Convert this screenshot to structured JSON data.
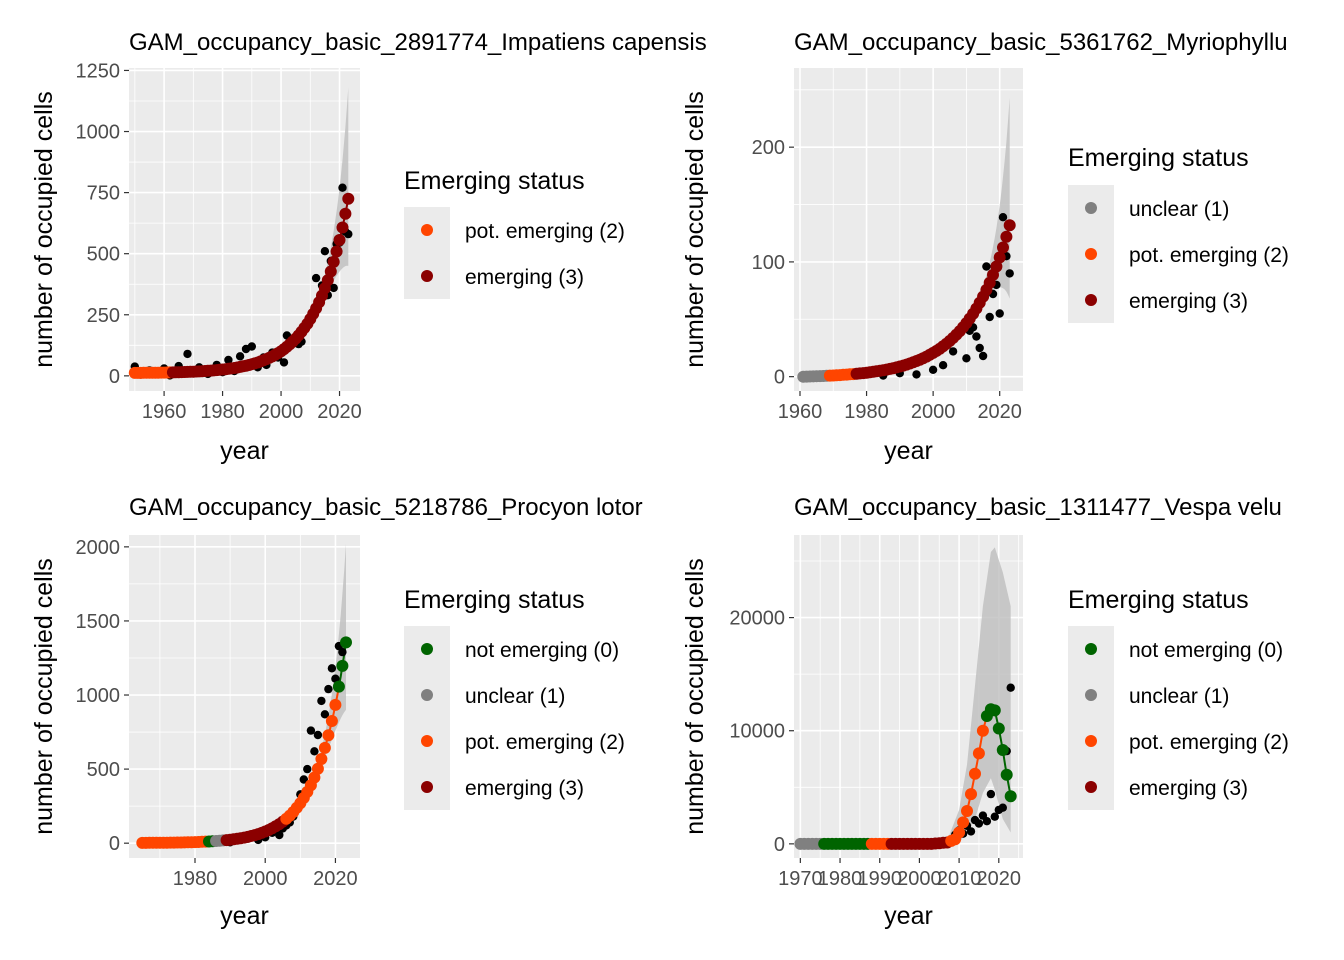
{
  "colors": {
    "panel_bg": "#EBEBEB",
    "grid": "#FFFFFF",
    "ribbon": "#BEBEBE",
    "observed": "#000000",
    "status": {
      "0": "#006400",
      "1": "#808080",
      "2": "#FF4500",
      "3": "#8B0000"
    }
  },
  "status_labels": {
    "0": "not emerging (0)",
    "1": "unclear (1)",
    "2": "pot. emerging (2)",
    "3": "emerging (3)"
  },
  "chart_data": [
    {
      "type": "scatter",
      "title": "GAM_occupancy_basic_2891774_Impatiens capensis",
      "xlabel": "year",
      "ylabel": "number of occupied cells",
      "xlim": [
        1948,
        2027
      ],
      "ylim": [
        -62,
        1260
      ],
      "xticks": [
        1960,
        1980,
        2000,
        2020
      ],
      "yticks": [
        0,
        250,
        500,
        750,
        1000,
        1250
      ],
      "legend": {
        "title": "Emerging status",
        "position": "right",
        "entries": [
          "pot. emerging (2)",
          "emerging (3)"
        ]
      },
      "status_segments": [
        {
          "status": 2,
          "from": 1950,
          "to": 1962
        },
        {
          "status": 3,
          "from": 1963,
          "to": 2023
        }
      ],
      "fit": {
        "model": "exponential",
        "at_start_year": 1950,
        "at_start_value": 12,
        "at_end_year": 2023,
        "at_end_value": 725
      },
      "ribbon": {
        "end_year": 2023,
        "upper_at_end": 1180,
        "lower_at_end": 450,
        "shape": 3
      },
      "observed": [
        [
          1950,
          38
        ],
        [
          1952,
          5
        ],
        [
          1955,
          22
        ],
        [
          1957,
          8
        ],
        [
          1960,
          30
        ],
        [
          1962,
          2
        ],
        [
          1965,
          40
        ],
        [
          1968,
          90
        ],
        [
          1970,
          10
        ],
        [
          1972,
          35
        ],
        [
          1975,
          8
        ],
        [
          1978,
          45
        ],
        [
          1980,
          15
        ],
        [
          1982,
          65
        ],
        [
          1984,
          20
        ],
        [
          1986,
          80
        ],
        [
          1988,
          110
        ],
        [
          1990,
          120
        ],
        [
          1992,
          35
        ],
        [
          1994,
          75
        ],
        [
          1995,
          45
        ],
        [
          1997,
          95
        ],
        [
          1999,
          75
        ],
        [
          2001,
          55
        ],
        [
          2002,
          165
        ],
        [
          2004,
          140
        ],
        [
          2006,
          130
        ],
        [
          2007,
          140
        ],
        [
          2009,
          220
        ],
        [
          2011,
          260
        ],
        [
          2012,
          400
        ],
        [
          2014,
          370
        ],
        [
          2015,
          510
        ],
        [
          2016,
          330
        ],
        [
          2017,
          470
        ],
        [
          2018,
          360
        ],
        [
          2019,
          540
        ],
        [
          2020,
          545
        ],
        [
          2021,
          770
        ],
        [
          2022,
          590
        ],
        [
          2023,
          580
        ]
      ]
    },
    {
      "type": "scatter",
      "title": "GAM_occupancy_basic_5361762_Myriophyllu",
      "xlabel": "year",
      "ylabel": "number of occupied cells",
      "xlim": [
        1958.2,
        2027
      ],
      "ylim": [
        -12.5,
        269
      ],
      "xticks": [
        1960,
        1980,
        2000,
        2020
      ],
      "yticks": [
        0,
        100,
        200
      ],
      "legend": {
        "title": "Emerging status",
        "position": "right",
        "entries": [
          "unclear (1)",
          "pot. emerging (2)",
          "emerging (3)"
        ]
      },
      "status_segments": [
        {
          "status": 1,
          "from": 1961,
          "to": 1968
        },
        {
          "status": 2,
          "from": 1969,
          "to": 1976
        },
        {
          "status": 3,
          "from": 1977,
          "to": 2023
        }
      ],
      "fit": {
        "model": "exponential",
        "at_start_year": 1961,
        "at_start_value": 0,
        "at_end_year": 2023,
        "at_end_value": 132
      },
      "ribbon": {
        "end_year": 2023,
        "upper_at_end": 243,
        "lower_at_end": 68,
        "shape": 3
      },
      "observed": [
        [
          1975,
          1
        ],
        [
          1980,
          2
        ],
        [
          1985,
          1
        ],
        [
          1990,
          3
        ],
        [
          1995,
          2
        ],
        [
          2000,
          6
        ],
        [
          2003,
          10
        ],
        [
          2006,
          22
        ],
        [
          2008,
          38
        ],
        [
          2010,
          16
        ],
        [
          2011,
          40
        ],
        [
          2012,
          43
        ],
        [
          2013,
          35
        ],
        [
          2014,
          25
        ],
        [
          2015,
          18
        ],
        [
          2016,
          96
        ],
        [
          2017,
          52
        ],
        [
          2018,
          72
        ],
        [
          2019,
          80
        ],
        [
          2020,
          55
        ],
        [
          2021,
          139
        ],
        [
          2022,
          105
        ],
        [
          2023,
          90
        ]
      ]
    },
    {
      "type": "scatter",
      "title": "GAM_occupancy_basic_5218786_Procyon lotor",
      "xlabel": "year",
      "ylabel": "number of occupied cells",
      "xlim": [
        1961.2,
        2027
      ],
      "ylim": [
        -100,
        2080
      ],
      "xticks": [
        1980,
        2000,
        2020
      ],
      "yticks": [
        0,
        500,
        1000,
        1500,
        2000
      ],
      "legend": {
        "title": "Emerging status",
        "position": "right",
        "entries": [
          "not emerging (0)",
          "unclear (1)",
          "pot. emerging (2)",
          "emerging (3)"
        ]
      },
      "status_segments": [
        {
          "status": 2,
          "from": 1965,
          "to": 1983
        },
        {
          "status": 0,
          "from": 1984,
          "to": 1985
        },
        {
          "status": 1,
          "from": 1986,
          "to": 1988
        },
        {
          "status": 3,
          "from": 1989,
          "to": 2005
        },
        {
          "status": 2,
          "from": 2006,
          "to": 2020
        },
        {
          "status": 0,
          "from": 2021,
          "to": 2023
        }
      ],
      "fit": {
        "model": "exponential",
        "at_start_year": 1965,
        "at_start_value": 2,
        "at_end_year": 2023,
        "at_end_value": 1355
      },
      "ribbon": {
        "end_year": 2023,
        "upper_at_end": 2020,
        "lower_at_end": 900,
        "shape": 3
      },
      "observed": [
        [
          1965,
          3
        ],
        [
          1970,
          5
        ],
        [
          1975,
          2
        ],
        [
          1980,
          8
        ],
        [
          1985,
          12
        ],
        [
          1990,
          6
        ],
        [
          1995,
          30
        ],
        [
          1998,
          22
        ],
        [
          2000,
          40
        ],
        [
          2002,
          70
        ],
        [
          2004,
          55
        ],
        [
          2005,
          100
        ],
        [
          2006,
          120
        ],
        [
          2007,
          140
        ],
        [
          2008,
          180
        ],
        [
          2009,
          250
        ],
        [
          2010,
          330
        ],
        [
          2011,
          430
        ],
        [
          2012,
          500
        ],
        [
          2013,
          760
        ],
        [
          2014,
          620
        ],
        [
          2015,
          730
        ],
        [
          2016,
          960
        ],
        [
          2017,
          870
        ],
        [
          2018,
          1040
        ],
        [
          2019,
          1180
        ],
        [
          2020,
          1110
        ],
        [
          2021,
          1330
        ],
        [
          2022,
          1290
        ],
        [
          2023,
          1360
        ]
      ]
    },
    {
      "type": "scatter",
      "title": "GAM_occupancy_basic_1311477_Vespa velu",
      "xlabel": "year",
      "ylabel": "number of occupied cells",
      "xlim": [
        1968.4,
        2026.1
      ],
      "ylim": [
        -1250,
        27300
      ],
      "xticks": [
        1970,
        1980,
        1990,
        2000,
        2010,
        2020
      ],
      "yticks": [
        0,
        10000,
        20000
      ],
      "legend": {
        "title": "Emerging status",
        "position": "right",
        "entries": [
          "not emerging (0)",
          "unclear (1)",
          "pot. emerging (2)",
          "emerging (3)"
        ]
      },
      "status_segments": [
        {
          "status": 1,
          "from": 1970,
          "to": 1975
        },
        {
          "status": 0,
          "from": 1976,
          "to": 1987
        },
        {
          "status": 2,
          "from": 1988,
          "to": 1992
        },
        {
          "status": 3,
          "from": 1993,
          "to": 2007
        },
        {
          "status": 2,
          "from": 2008,
          "to": 2016
        },
        {
          "status": 0,
          "from": 2017,
          "to": 2023
        }
      ],
      "fit_points": [
        [
          2003,
          0
        ],
        [
          2007,
          120
        ],
        [
          2009,
          400
        ],
        [
          2010,
          1000
        ],
        [
          2011,
          1900
        ],
        [
          2012,
          2900
        ],
        [
          2013,
          4400
        ],
        [
          2014,
          6200
        ],
        [
          2015,
          8000
        ],
        [
          2016,
          10000
        ],
        [
          2017,
          11300
        ],
        [
          2018,
          11900
        ],
        [
          2019,
          11800
        ],
        [
          2020,
          10200
        ],
        [
          2021,
          8300
        ],
        [
          2022,
          6100
        ],
        [
          2023,
          4200
        ]
      ],
      "ribbon_points": [
        [
          2007,
          300,
          0
        ],
        [
          2010,
          3000,
          100
        ],
        [
          2012,
          7000,
          1000
        ],
        [
          2014,
          14000,
          2200
        ],
        [
          2016,
          21000,
          4500
        ],
        [
          2018,
          25800,
          5800
        ],
        [
          2019,
          26200,
          4800
        ],
        [
          2021,
          24000,
          2200
        ],
        [
          2023,
          21000,
          1000
        ]
      ],
      "observed": [
        [
          2008,
          300
        ],
        [
          2009,
          800
        ],
        [
          2010,
          1200
        ],
        [
          2011,
          900
        ],
        [
          2012,
          1600
        ],
        [
          2013,
          1100
        ],
        [
          2014,
          2100
        ],
        [
          2015,
          1800
        ],
        [
          2016,
          2500
        ],
        [
          2017,
          2000
        ],
        [
          2018,
          4400
        ],
        [
          2019,
          2400
        ],
        [
          2020,
          3000
        ],
        [
          2021,
          3200
        ],
        [
          2022,
          8200
        ],
        [
          2023,
          13800
        ]
      ]
    }
  ]
}
